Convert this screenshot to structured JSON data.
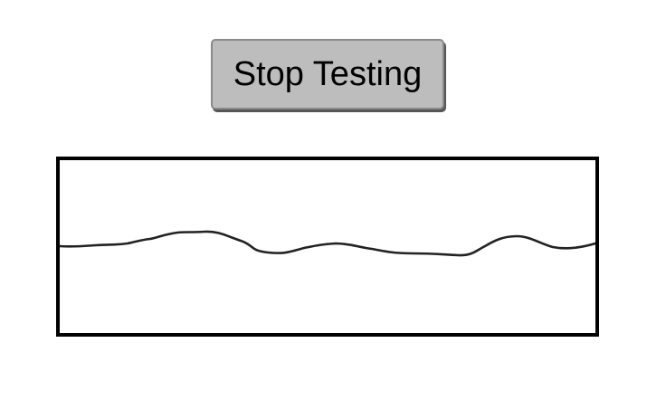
{
  "controls": {
    "stop_label": "Stop Testing"
  },
  "colors": {
    "button_background": "#bdbdbd",
    "waveform_stroke": "#222222",
    "frame_border": "#000000"
  },
  "icons": {
    "waveform": "waveform-trace"
  }
}
